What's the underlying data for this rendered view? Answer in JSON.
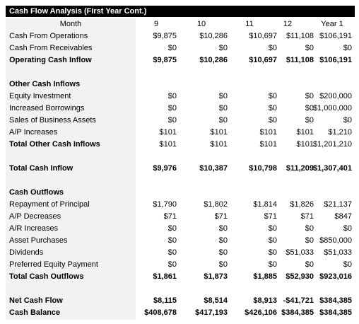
{
  "title": "Cash Flow Analysis (First Year Cont.)",
  "columns": {
    "label": "Month",
    "c0": "9",
    "c1": "10",
    "c2": "11",
    "c3": "12",
    "c4": "Year 1"
  },
  "rows": {
    "cash_from_operations": {
      "label": "Cash From Operations",
      "c0": "$9,875",
      "c1": "$10,286",
      "c2": "$10,697",
      "c3": "$11,108",
      "c4": "$106,191"
    },
    "cash_from_receivables": {
      "label": "Cash From Receivables",
      "c0": "$0",
      "c1": "$0",
      "c2": "$0",
      "c3": "$0",
      "c4": "$0"
    },
    "operating_cash_inflow": {
      "label": "Operating Cash Inflow",
      "c0": "$9,875",
      "c1": "$10,286",
      "c2": "$10,697",
      "c3": "$11,108",
      "c4": "$106,191"
    },
    "other_cash_inflows": {
      "label": "Other Cash Inflows"
    },
    "equity_investment": {
      "label": "Equity Investment",
      "c0": "$0",
      "c1": "$0",
      "c2": "$0",
      "c3": "$0",
      "c4": "$200,000"
    },
    "increased_borrowings": {
      "label": "Increased Borrowings",
      "c0": "$0",
      "c1": "$0",
      "c2": "$0",
      "c3": "$0",
      "c4": "$1,000,000"
    },
    "sales_of_business_assets": {
      "label": "Sales of Business Assets",
      "c0": "$0",
      "c1": "$0",
      "c2": "$0",
      "c3": "$0",
      "c4": "$0"
    },
    "ap_increases": {
      "label": "A/P Increases",
      "c0": "$101",
      "c1": "$101",
      "c2": "$101",
      "c3": "$101",
      "c4": "$1,210"
    },
    "total_other_cash_inflows": {
      "label": "Total Other Cash Inflows",
      "c0": "$101",
      "c1": "$101",
      "c2": "$101",
      "c3": "$101",
      "c4": "$1,201,210"
    },
    "total_cash_inflow": {
      "label": "Total Cash Inflow",
      "c0": "$9,976",
      "c1": "$10,387",
      "c2": "$10,798",
      "c3": "$11,209",
      "c4": "$1,307,401"
    },
    "cash_outflows": {
      "label": "Cash Outflows"
    },
    "repayment_of_principal": {
      "label": "Repayment of Principal",
      "c0": "$1,790",
      "c1": "$1,802",
      "c2": "$1,814",
      "c3": "$1,826",
      "c4": "$21,137"
    },
    "ap_decreases": {
      "label": "A/P Decreases",
      "c0": "$71",
      "c1": "$71",
      "c2": "$71",
      "c3": "$71",
      "c4": "$847"
    },
    "ar_increases": {
      "label": "A/R Increases",
      "c0": "$0",
      "c1": "$0",
      "c2": "$0",
      "c3": "$0",
      "c4": "$0"
    },
    "asset_purchases": {
      "label": "Asset Purchases",
      "c0": "$0",
      "c1": "$0",
      "c2": "$0",
      "c3": "$0",
      "c4": "$850,000"
    },
    "dividends": {
      "label": "Dividends",
      "c0": "$0",
      "c1": "$0",
      "c2": "$0",
      "c3": "$51,033",
      "c4": "$51,033"
    },
    "preferred_equity_payment": {
      "label": "Preferred Equity Payment",
      "c0": "$0",
      "c1": "$0",
      "c2": "$0",
      "c3": "$0",
      "c4": "$0"
    },
    "total_cash_outflows": {
      "label": "Total Cash Outflows",
      "c0": "$1,861",
      "c1": "$1,873",
      "c2": "$1,885",
      "c3": "$52,930",
      "c4": "$923,016"
    },
    "net_cash_flow": {
      "label": "Net Cash Flow",
      "c0": "$8,115",
      "c1": "$8,514",
      "c2": "$8,913",
      "c3": "-$41,721",
      "c4": "$384,385"
    },
    "cash_balance": {
      "label": "Cash Balance",
      "c0": "$408,678",
      "c1": "$417,193",
      "c2": "$426,106",
      "c3": "$384,385",
      "c4": "$384,385"
    }
  }
}
